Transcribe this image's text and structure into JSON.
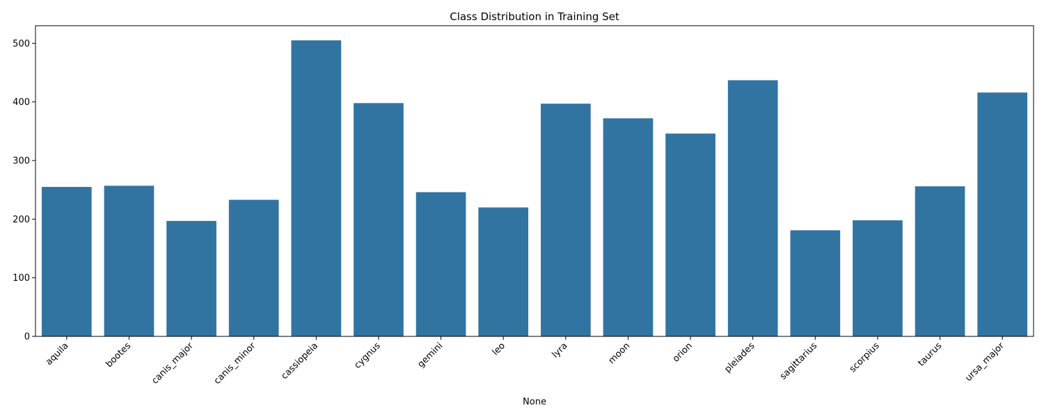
{
  "chart_data": {
    "type": "bar",
    "title": "Class Distribution in Training Set",
    "xlabel": "None",
    "ylabel": "",
    "categories": [
      "aquila",
      "bootes",
      "canis_major",
      "canis_minor",
      "cassiopeia",
      "cygnus",
      "gemini",
      "leo",
      "lyra",
      "moon",
      "orion",
      "pleiades",
      "sagittarius",
      "scorpius",
      "taurus",
      "ursa_major"
    ],
    "values": [
      255,
      257,
      197,
      233,
      505,
      398,
      246,
      220,
      397,
      372,
      346,
      437,
      181,
      198,
      256,
      416
    ],
    "ylim": [
      0,
      530
    ],
    "yticks": [
      0,
      100,
      200,
      300,
      400,
      500
    ],
    "bar_color": "#3274a1",
    "grid": false,
    "xtick_rotation": "45deg"
  }
}
